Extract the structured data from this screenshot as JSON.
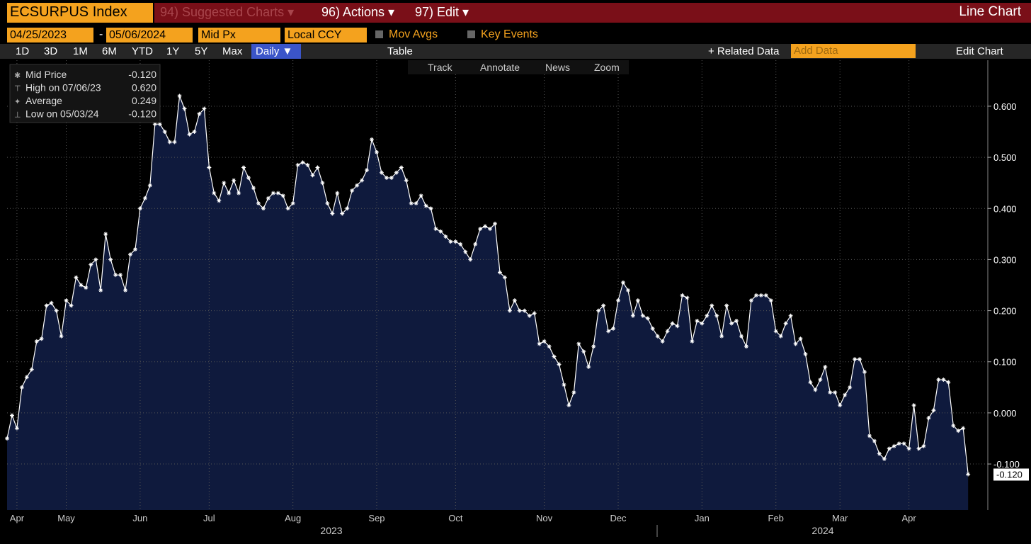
{
  "toolbar": {
    "ticker": "ECSURPUS Index",
    "suggested": "94) Suggested Charts ▾",
    "actions": "96) Actions ▾",
    "edit": "97) Edit ▾",
    "chart_kind": "Line Chart"
  },
  "settings": {
    "start_date": "04/25/2023",
    "dash": "-",
    "end_date": "05/06/2024",
    "field": "Mid Px",
    "currency": "Local CCY",
    "mov_avgs": "Mov Avgs",
    "key_events": "Key Events"
  },
  "ranges": [
    "1D",
    "3D",
    "1M",
    "6M",
    "YTD",
    "1Y",
    "5Y",
    "Max"
  ],
  "period": "Daily ▼",
  "table": "Table",
  "related": "+ Related Data",
  "add_data": "Add Data",
  "edit_chart": "Edit Chart",
  "tools": [
    "Track",
    "Annotate",
    "News",
    "Zoom"
  ],
  "legend_box": [
    {
      "name": "Mid Price",
      "value": "-0.120"
    },
    {
      "name": "High on 07/06/23",
      "value": "0.620"
    },
    {
      "name": "Average",
      "value": "0.249"
    },
    {
      "name": "Low on 05/03/24",
      "value": "-0.120"
    }
  ],
  "last_price_tag": "-0.120",
  "years": [
    "2023",
    "2024"
  ],
  "chart_data": {
    "type": "line",
    "color": "#ffffff",
    "fill": "#0f1a3d",
    "grid": true,
    "values": [
      -0.05,
      -0.005,
      -0.03,
      0.05,
      0.07,
      0.085,
      0.14,
      0.145,
      0.21,
      0.215,
      0.2,
      0.15,
      0.22,
      0.21,
      0.265,
      0.25,
      0.245,
      0.29,
      0.3,
      0.24,
      0.35,
      0.3,
      0.27,
      0.27,
      0.24,
      0.31,
      0.32,
      0.4,
      0.42,
      0.445,
      0.565,
      0.565,
      0.55,
      0.53,
      0.53,
      0.62,
      0.595,
      0.545,
      0.55,
      0.585,
      0.595,
      0.48,
      0.43,
      0.415,
      0.45,
      0.43,
      0.455,
      0.43,
      0.48,
      0.46,
      0.44,
      0.41,
      0.4,
      0.42,
      0.43,
      0.43,
      0.425,
      0.4,
      0.41,
      0.485,
      0.49,
      0.485,
      0.465,
      0.48,
      0.45,
      0.41,
      0.39,
      0.43,
      0.39,
      0.4,
      0.435,
      0.445,
      0.455,
      0.475,
      0.535,
      0.51,
      0.47,
      0.46,
      0.46,
      0.47,
      0.48,
      0.455,
      0.41,
      0.41,
      0.425,
      0.405,
      0.4,
      0.36,
      0.355,
      0.345,
      0.335,
      0.335,
      0.33,
      0.315,
      0.3,
      0.33,
      0.36,
      0.365,
      0.36,
      0.37,
      0.275,
      0.265,
      0.2,
      0.22,
      0.2,
      0.2,
      0.19,
      0.195,
      0.135,
      0.14,
      0.13,
      0.11,
      0.095,
      0.055,
      0.015,
      0.04,
      0.135,
      0.12,
      0.09,
      0.13,
      0.2,
      0.21,
      0.16,
      0.165,
      0.22,
      0.255,
      0.24,
      0.19,
      0.22,
      0.19,
      0.185,
      0.165,
      0.15,
      0.14,
      0.16,
      0.175,
      0.17,
      0.23,
      0.225,
      0.14,
      0.18,
      0.175,
      0.19,
      0.21,
      0.19,
      0.15,
      0.21,
      0.175,
      0.18,
      0.15,
      0.13,
      0.22,
      0.23,
      0.23,
      0.23,
      0.22,
      0.16,
      0.15,
      0.175,
      0.19,
      0.135,
      0.145,
      0.115,
      0.06,
      0.045,
      0.065,
      0.09,
      0.04,
      0.04,
      0.015,
      0.035,
      0.05,
      0.105,
      0.105,
      0.08,
      -0.045,
      -0.055,
      -0.08,
      -0.09,
      -0.07,
      -0.065,
      -0.06,
      -0.06,
      -0.07,
      0.015,
      -0.07,
      -0.065,
      -0.01,
      0.005,
      0.065,
      0.065,
      0.06,
      -0.025,
      -0.035,
      -0.03,
      -0.12
    ],
    "xlim": [
      0,
      199
    ],
    "xticks": [
      {
        "value": 2,
        "label": "Apr"
      },
      {
        "value": 12,
        "label": "May"
      },
      {
        "value": 27,
        "label": "Jun"
      },
      {
        "value": 41,
        "label": "Jul"
      },
      {
        "value": 58,
        "label": "Aug"
      },
      {
        "value": 75,
        "label": "Sep"
      },
      {
        "value": 91,
        "label": "Oct"
      },
      {
        "value": 109,
        "label": "Nov"
      },
      {
        "value": 124,
        "label": "Dec"
      },
      {
        "value": 141,
        "label": "Jan"
      },
      {
        "value": 156,
        "label": "Feb"
      },
      {
        "value": 169,
        "label": "Mar"
      },
      {
        "value": 183,
        "label": "Apr"
      }
    ],
    "ylim": [
      -0.19,
      0.69
    ],
    "yticks": [
      {
        "value": 0.6,
        "label": "0.600"
      },
      {
        "value": 0.5,
        "label": "0.500"
      },
      {
        "value": 0.4,
        "label": "0.400"
      },
      {
        "value": 0.3,
        "label": "0.300"
      },
      {
        "value": 0.2,
        "label": "0.200"
      },
      {
        "value": 0.1,
        "label": "0.100"
      },
      {
        "value": 0,
        "label": "0.000"
      },
      {
        "value": -0.1,
        "label": "-0.100"
      }
    ]
  }
}
